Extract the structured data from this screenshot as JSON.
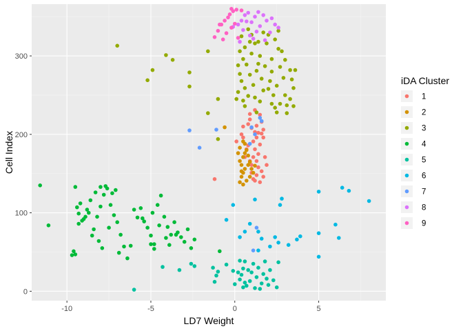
{
  "chart_data": {
    "type": "scatter",
    "xlabel": "LD7 Weight",
    "ylabel": "Cell Index",
    "xlim": [
      -12.1,
      9.0
    ],
    "ylim": [
      -12,
      366
    ],
    "x_ticks": [
      -10,
      -5,
      0,
      5
    ],
    "y_ticks": [
      0,
      100,
      200,
      300
    ],
    "x_tick_labels": [
      "-10",
      "-5",
      "0",
      "5"
    ],
    "y_tick_labels": [
      "0",
      "100",
      "200",
      "300"
    ],
    "grid": true,
    "legend": {
      "title": "iDA Cluster",
      "placement": "right",
      "labels": [
        "1",
        "2",
        "3",
        "4",
        "5",
        "6",
        "7",
        "8",
        "9"
      ]
    },
    "colors": {
      "1": "#F8766D",
      "2": "#D39200",
      "3": "#93AA00",
      "4": "#00BA38",
      "5": "#00C19F",
      "6": "#00B9E3",
      "7": "#619CFF",
      "8": "#DB72FB",
      "9": "#FF61C3",
      "panel": "#EBEBEB",
      "grid_major": "#FFFFFF"
    },
    "series": [
      {
        "name": "1",
        "points": [
          [
            -1.2,
            143
          ],
          [
            0.1,
            191
          ],
          [
            0.5,
            196
          ],
          [
            0.5,
            210
          ],
          [
            0.8,
            213
          ],
          [
            0.9,
            219
          ],
          [
            1.0,
            208
          ],
          [
            1.2,
            203
          ],
          [
            1.4,
            202
          ],
          [
            1.6,
            201
          ],
          [
            1.3,
            196
          ],
          [
            1.1,
            191
          ],
          [
            1.5,
            187
          ],
          [
            1.2,
            181
          ],
          [
            1.4,
            175
          ],
          [
            1.1,
            171
          ],
          [
            1.3,
            166
          ],
          [
            1.0,
            161
          ],
          [
            1.4,
            158
          ],
          [
            1.6,
            153
          ],
          [
            1.3,
            148
          ],
          [
            1.1,
            143
          ],
          [
            1.5,
            139
          ],
          [
            1.7,
            146
          ],
          [
            1.9,
            161
          ],
          [
            1.7,
            206
          ],
          [
            0.9,
            226
          ],
          [
            1.2,
            231
          ],
          [
            0.7,
            181
          ],
          [
            1.6,
            216
          ],
          [
            1.0,
            151
          ],
          [
            1.2,
            141
          ],
          [
            0.6,
            171
          ],
          [
            0.4,
            200
          ],
          [
            1.8,
            171
          ],
          [
            1.5,
            225
          ],
          [
            0.8,
            186
          ],
          [
            1.3,
            211
          ],
          [
            1.7,
            196
          ],
          [
            0.9,
            166
          ]
        ]
      },
      {
        "name": "2",
        "points": [
          [
            0.3,
            139
          ],
          [
            0.4,
            146
          ],
          [
            0.5,
            151
          ],
          [
            0.6,
            156
          ],
          [
            0.4,
            161
          ],
          [
            0.3,
            166
          ],
          [
            0.5,
            171
          ],
          [
            0.6,
            176
          ],
          [
            0.7,
            180
          ],
          [
            0.3,
            183
          ],
          [
            0.5,
            191
          ],
          [
            0.8,
            161
          ],
          [
            0.9,
            146
          ],
          [
            1.0,
            156
          ],
          [
            0.6,
            188
          ],
          [
            0.2,
            176
          ],
          [
            0.8,
            173
          ],
          [
            0.4,
            153
          ],
          [
            0.7,
            141
          ],
          [
            1.1,
            151
          ],
          [
            -0.6,
            209
          ],
          [
            0.9,
            165
          ],
          [
            0.5,
            136
          ],
          [
            1.2,
            160
          ]
        ]
      },
      {
        "name": "3",
        "points": [
          [
            -7.0,
            313
          ],
          [
            -5.2,
            269
          ],
          [
            -4.9,
            282
          ],
          [
            -4.1,
            301
          ],
          [
            -3.7,
            295
          ],
          [
            -2.7,
            279
          ],
          [
            -2.7,
            261
          ],
          [
            -1.6,
            227
          ],
          [
            -1.6,
            306
          ],
          [
            -1.0,
            245
          ],
          [
            -1.0,
            194
          ],
          [
            0.2,
            254
          ],
          [
            0.3,
            277
          ],
          [
            0.5,
            296
          ],
          [
            0.6,
            311
          ],
          [
            0.4,
            325
          ],
          [
            0.8,
            334
          ],
          [
            1.0,
            327
          ],
          [
            1.2,
            316
          ],
          [
            1.0,
            303
          ],
          [
            0.7,
            289
          ],
          [
            0.9,
            276
          ],
          [
            1.1,
            263
          ],
          [
            0.8,
            249
          ],
          [
            0.6,
            236
          ],
          [
            1.3,
            228
          ],
          [
            1.5,
            242
          ],
          [
            1.7,
            256
          ],
          [
            1.6,
            271
          ],
          [
            1.8,
            287
          ],
          [
            1.5,
            300
          ],
          [
            1.4,
            318
          ],
          [
            2.0,
            327
          ],
          [
            2.4,
            321
          ],
          [
            2.6,
            309
          ],
          [
            2.2,
            296
          ],
          [
            2.7,
            286
          ],
          [
            2.9,
            272
          ],
          [
            2.5,
            262
          ],
          [
            2.3,
            250
          ],
          [
            2.7,
            239
          ],
          [
            2.5,
            228
          ],
          [
            3.1,
            237
          ],
          [
            3.3,
            245
          ],
          [
            3.5,
            259
          ],
          [
            3.4,
            270
          ],
          [
            3.3,
            282
          ],
          [
            3.0,
            295
          ],
          [
            2.8,
            306
          ],
          [
            3.1,
            227
          ],
          [
            2.4,
            234
          ],
          [
            2.1,
            268
          ],
          [
            1.9,
            316
          ],
          [
            0.3,
            306
          ],
          [
            0.2,
            288
          ],
          [
            0.4,
            268
          ],
          [
            0.1,
            245
          ],
          [
            0.6,
            259
          ],
          [
            1.2,
            247
          ],
          [
            1.4,
            290
          ],
          [
            2.2,
            280
          ],
          [
            3.6,
            282
          ],
          [
            2.0,
            258
          ],
          [
            2.6,
            332
          ],
          [
            1.7,
            330
          ],
          [
            3.5,
            236
          ],
          [
            0.9,
            318
          ],
          [
            1.3,
            281
          ],
          [
            2.2,
            239
          ],
          [
            3.0,
            250
          ],
          [
            0.5,
            243
          ]
        ]
      },
      {
        "name": "4",
        "points": [
          [
            -11.6,
            135
          ],
          [
            -11.1,
            84
          ],
          [
            -9.7,
            46
          ],
          [
            -9.5,
            47
          ],
          [
            -9.5,
            133
          ],
          [
            -9.3,
            99
          ],
          [
            -9.2,
            112
          ],
          [
            -9.0,
            92
          ],
          [
            -8.8,
            104
          ],
          [
            -8.6,
            116
          ],
          [
            -8.4,
            79
          ],
          [
            -8.2,
            95
          ],
          [
            -8.0,
            108
          ],
          [
            -7.8,
            123
          ],
          [
            -7.6,
            131
          ],
          [
            -7.4,
            110
          ],
          [
            -7.2,
            97
          ],
          [
            -7.0,
            88
          ],
          [
            -6.8,
            72
          ],
          [
            -6.6,
            57
          ],
          [
            -6.4,
            42
          ],
          [
            -6.0,
            104
          ],
          [
            -5.8,
            94
          ],
          [
            -5.6,
            106
          ],
          [
            -5.4,
            89
          ],
          [
            -5.2,
            81
          ],
          [
            -5.0,
            71
          ],
          [
            -4.8,
            60
          ],
          [
            -4.6,
            110
          ],
          [
            -4.4,
            122
          ],
          [
            -4.2,
            95
          ],
          [
            -4.0,
            82
          ],
          [
            -3.8,
            72
          ],
          [
            -3.6,
            88
          ],
          [
            -3.4,
            75
          ],
          [
            -3.2,
            69
          ],
          [
            -3.0,
            63
          ],
          [
            -2.8,
            79
          ],
          [
            -2.6,
            55
          ],
          [
            -2.4,
            66
          ],
          [
            -8.9,
            95
          ],
          [
            -9.3,
            86
          ],
          [
            -8.5,
            71
          ],
          [
            -8.1,
            64
          ],
          [
            -7.9,
            55
          ],
          [
            -7.7,
            134
          ],
          [
            -8.3,
            126
          ],
          [
            -9.1,
            90
          ],
          [
            -6.2,
            58
          ],
          [
            -5.0,
            60
          ],
          [
            -4.8,
            54
          ],
          [
            -9.6,
            51
          ],
          [
            -8.7,
            100
          ],
          [
            -7.5,
            81
          ],
          [
            -7.3,
            125
          ],
          [
            -4.9,
            100
          ],
          [
            -4.5,
            84
          ],
          [
            -3.9,
            59
          ],
          [
            -9.4,
            107
          ],
          [
            -6.9,
            49
          ],
          [
            -8.0,
            133
          ],
          [
            -7.1,
            129
          ],
          [
            -4.1,
            68
          ],
          [
            -3.5,
            72
          ],
          [
            -5.5,
            93
          ],
          [
            -0.9,
            51
          ]
        ]
      },
      {
        "name": "5",
        "points": [
          [
            -6.0,
            2
          ],
          [
            -4.3,
            31
          ],
          [
            -3.3,
            27
          ],
          [
            -2.6,
            35
          ],
          [
            -2.4,
            32
          ],
          [
            -1.3,
            30
          ],
          [
            -1.1,
            20
          ],
          [
            -1.2,
            12
          ],
          [
            -0.5,
            34
          ],
          [
            -0.1,
            26
          ],
          [
            0.0,
            9
          ],
          [
            0.3,
            15
          ],
          [
            0.4,
            21
          ],
          [
            0.5,
            29
          ],
          [
            0.6,
            38
          ],
          [
            0.7,
            7
          ],
          [
            0.9,
            13
          ],
          [
            1.0,
            24
          ],
          [
            1.2,
            4
          ],
          [
            1.3,
            18
          ],
          [
            1.4,
            30
          ],
          [
            1.6,
            10
          ],
          [
            1.7,
            22
          ],
          [
            1.8,
            38
          ],
          [
            2.1,
            27
          ],
          [
            2.3,
            14
          ],
          [
            2.5,
            5
          ],
          [
            0.2,
            24
          ],
          [
            0.5,
            5
          ],
          [
            0.8,
            27
          ],
          [
            1.1,
            35
          ],
          [
            1.5,
            3
          ],
          [
            1.9,
            16
          ],
          [
            2.0,
            8
          ],
          [
            0.3,
            39
          ],
          [
            0.6,
            11
          ],
          [
            2.6,
            37
          ],
          [
            -1.0,
            25
          ]
        ]
      },
      {
        "name": "6",
        "points": [
          [
            -0.1,
            110
          ],
          [
            0.3,
            69
          ],
          [
            0.6,
            76
          ],
          [
            0.9,
            86
          ],
          [
            1.2,
            117
          ],
          [
            1.4,
            76
          ],
          [
            1.6,
            67
          ],
          [
            2.1,
            57
          ],
          [
            2.4,
            69
          ],
          [
            2.6,
            62
          ],
          [
            2.7,
            110
          ],
          [
            2.8,
            118
          ],
          [
            3.2,
            59
          ],
          [
            3.7,
            66
          ],
          [
            3.9,
            70
          ],
          [
            5.0,
            127
          ],
          [
            5.0,
            74
          ],
          [
            5.0,
            44
          ],
          [
            6.0,
            85
          ],
          [
            6.2,
            68
          ],
          [
            6.4,
            132
          ],
          [
            6.8,
            128
          ],
          [
            8.0,
            115
          ],
          [
            1.4,
            52
          ],
          [
            -0.5,
            91
          ]
        ]
      },
      {
        "name": "7",
        "points": [
          [
            -2.7,
            205
          ],
          [
            -2.1,
            183
          ],
          [
            -1.1,
            206
          ],
          [
            1.0,
            209
          ],
          [
            1.2,
            200
          ],
          [
            1.5,
            221
          ],
          [
            1.3,
            81
          ],
          [
            1.1,
            52
          ],
          [
            1.6,
            217
          ],
          [
            0.9,
            188
          ]
        ]
      },
      {
        "name": "8",
        "points": [
          [
            -0.1,
            337
          ],
          [
            0.2,
            340
          ],
          [
            0.4,
            345
          ],
          [
            0.6,
            352
          ],
          [
            0.8,
            355
          ],
          [
            1.0,
            343
          ],
          [
            1.2,
            350
          ],
          [
            1.4,
            356
          ],
          [
            1.7,
            352
          ],
          [
            1.9,
            345
          ],
          [
            2.2,
            348
          ],
          [
            2.4,
            340
          ],
          [
            2.6,
            336
          ],
          [
            0.5,
            333
          ],
          [
            0.9,
            326
          ],
          [
            1.3,
            331
          ],
          [
            1.5,
            338
          ],
          [
            1.8,
            320
          ],
          [
            2.1,
            330
          ],
          [
            1.1,
            322
          ],
          [
            0.3,
            318
          ],
          [
            0.7,
            344
          ]
        ]
      },
      {
        "name": "9",
        "points": [
          [
            -1.2,
            324
          ],
          [
            -1.0,
            332
          ],
          [
            -0.8,
            340
          ],
          [
            -0.6,
            345
          ],
          [
            -0.4,
            349
          ],
          [
            -0.3,
            353
          ],
          [
            -0.1,
            357
          ],
          [
            0.1,
            359
          ],
          [
            -0.2,
            336
          ],
          [
            0.0,
            341
          ],
          [
            -0.7,
            321
          ],
          [
            0.2,
            323
          ],
          [
            -0.5,
            329
          ],
          [
            0.4,
            358
          ],
          [
            -0.9,
            340
          ],
          [
            -0.2,
            360
          ]
        ]
      }
    ]
  }
}
